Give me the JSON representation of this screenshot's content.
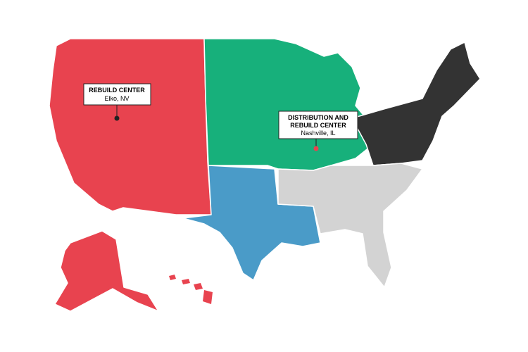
{
  "markers": [
    {
      "title": "REBUILD CENTER",
      "location": "Elko, NV"
    },
    {
      "title_lines": [
        "DISTRIBUTION AND",
        "REBUILD CENTER"
      ],
      "location": "Nashville, IL"
    }
  ]
}
